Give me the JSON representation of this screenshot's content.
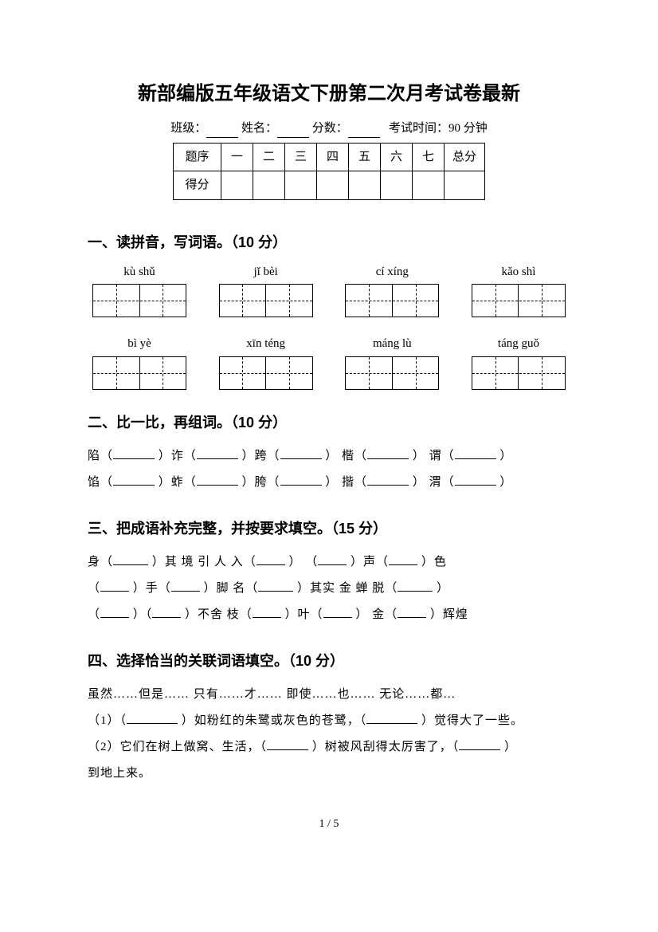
{
  "title": "新部编版五年级语文下册第二次月考试卷最新",
  "info": {
    "class_label": "班级：",
    "name_label": "姓名：",
    "score_label": "分数：",
    "time_label": "考试时间：90 分钟"
  },
  "score_table": {
    "row1": [
      "题序",
      "一",
      "二",
      "三",
      "四",
      "五",
      "六",
      "七",
      "总分"
    ],
    "row2_label": "得分"
  },
  "section1": {
    "heading": "一、读拼音，写词语。（10 分）",
    "pinyin_row1": [
      "kù  shǔ",
      "jǐ bèi",
      "cí xíng",
      "kǎo shì"
    ],
    "pinyin_row2": [
      "bì  yè",
      "xīn téng",
      "máng lù",
      "táng guǒ"
    ]
  },
  "section2": {
    "heading": "二、比一比，再组词。（10 分）",
    "line1": [
      "陷（",
      "）诈（",
      "）跨（",
      "）  楷（",
      "）  谓（",
      "）"
    ],
    "line2": [
      "馅（",
      "）蚱（",
      "）胯（",
      "）  揩（",
      "）  渭（",
      "）"
    ]
  },
  "section3": {
    "heading": "三、把成语补充完整，并按要求填空。（15 分）",
    "line1_parts": [
      "身（",
      "）其 境      引 人 入（",
      "）    （",
      "）声（",
      "）色"
    ],
    "line2_parts": [
      "（",
      "）手（",
      "）脚   名（",
      "）其实    金 蝉 脱（",
      "）"
    ],
    "line3_parts": [
      "（",
      "）（",
      "）不舍   枝（",
      "）叶（",
      "）   金（",
      "）辉煌"
    ]
  },
  "section4": {
    "heading": "四、选择恰当的关联词语填空。（10 分）",
    "choices": "虽然……但是……   只有……才……    即使……也……      无论……都…",
    "q1_parts": [
      "（1）（",
      "）如粉红的朱鹭或灰色的苍鹭，（",
      "）觉得大了一些。"
    ],
    "q2_parts": [
      "（2）它们在树上做窝、生活，（",
      "）树被风刮得太厉害了，（",
      "）"
    ],
    "q2_tail": "到地上来。"
  },
  "footer": "1 / 5"
}
